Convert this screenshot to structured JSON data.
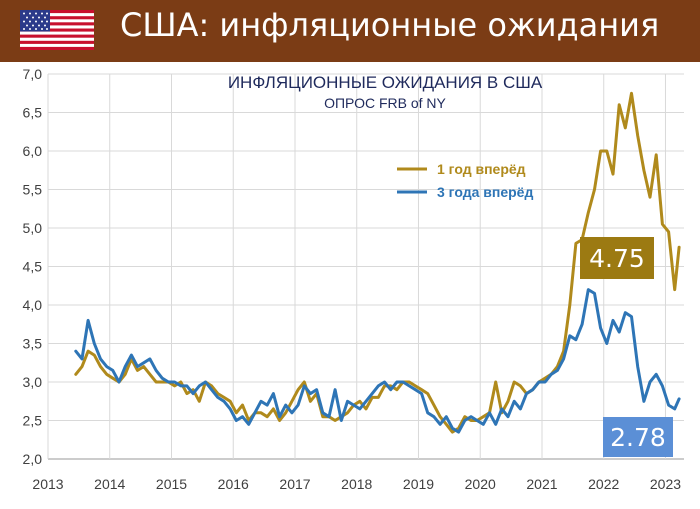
{
  "header": {
    "title": "США: инфляционные ожидания",
    "flag_icon": "us-flag-icon"
  },
  "colors": {
    "frame": "#7b3c15",
    "one_year": "#b08a1c",
    "three_year": "#2e75b6",
    "badge_one_year": "#9c7a12",
    "badge_three_year": "#5b8fd6"
  },
  "chart_data": {
    "type": "line",
    "title": "ИНФЛЯЦИОННЫЕ ОЖИДАНИЯ В США",
    "subtitle": "ОПРОС FRB of NY",
    "xlabel": "",
    "ylabel": "",
    "ylim": [
      2.0,
      7.0
    ],
    "xlim": [
      2013.0,
      2023.3
    ],
    "grid": true,
    "legend_position": "top-right",
    "y_ticks": [
      "2,0",
      "2,5",
      "3,0",
      "3,5",
      "4,0",
      "4,5",
      "5,0",
      "5,5",
      "6,0",
      "6,5",
      "7,0"
    ],
    "x_ticks": [
      "2013",
      "2014",
      "2015",
      "2016",
      "2017",
      "2018",
      "2019",
      "2020",
      "2021",
      "2022",
      "2023"
    ],
    "series": [
      {
        "name": "1 год вперёд",
        "color": "#b08a1c",
        "x": [
          2013.45,
          2013.55,
          2013.65,
          2013.75,
          2013.85,
          2013.95,
          2014.05,
          2014.15,
          2014.25,
          2014.35,
          2014.45,
          2014.55,
          2014.65,
          2014.75,
          2014.85,
          2014.95,
          2015.05,
          2015.15,
          2015.25,
          2015.35,
          2015.45,
          2015.55,
          2015.65,
          2015.75,
          2015.85,
          2015.95,
          2016.05,
          2016.15,
          2016.25,
          2016.35,
          2016.45,
          2016.55,
          2016.65,
          2016.75,
          2016.85,
          2016.95,
          2017.05,
          2017.15,
          2017.25,
          2017.35,
          2017.45,
          2017.55,
          2017.65,
          2017.75,
          2017.85,
          2017.95,
          2018.05,
          2018.15,
          2018.25,
          2018.35,
          2018.45,
          2018.55,
          2018.65,
          2018.75,
          2018.85,
          2018.95,
          2019.05,
          2019.15,
          2019.25,
          2019.35,
          2019.45,
          2019.55,
          2019.65,
          2019.75,
          2019.85,
          2019.95,
          2020.05,
          2020.15,
          2020.25,
          2020.35,
          2020.45,
          2020.55,
          2020.65,
          2020.75,
          2020.85,
          2020.95,
          2021.05,
          2021.15,
          2021.25,
          2021.35,
          2021.45,
          2021.55,
          2021.65,
          2021.75,
          2021.85,
          2021.95,
          2022.05,
          2022.15,
          2022.25,
          2022.35,
          2022.45,
          2022.55,
          2022.65,
          2022.75,
          2022.85,
          2022.95,
          2023.05,
          2023.15,
          2023.22
        ],
        "values": [
          3.1,
          3.2,
          3.4,
          3.35,
          3.2,
          3.1,
          3.05,
          3.0,
          3.1,
          3.3,
          3.15,
          3.2,
          3.1,
          3.0,
          3.0,
          3.0,
          2.95,
          3.0,
          2.85,
          2.9,
          2.75,
          3.0,
          2.95,
          2.85,
          2.8,
          2.75,
          2.6,
          2.7,
          2.5,
          2.6,
          2.6,
          2.55,
          2.65,
          2.5,
          2.6,
          2.75,
          2.9,
          3.0,
          2.75,
          2.85,
          2.55,
          2.55,
          2.5,
          2.55,
          2.6,
          2.7,
          2.75,
          2.65,
          2.8,
          2.8,
          2.95,
          2.95,
          2.9,
          3.0,
          3.0,
          2.95,
          2.9,
          2.85,
          2.7,
          2.55,
          2.45,
          2.35,
          2.4,
          2.55,
          2.5,
          2.5,
          2.55,
          2.6,
          3.0,
          2.6,
          2.75,
          3.0,
          2.95,
          2.85,
          2.9,
          3.0,
          3.05,
          3.1,
          3.2,
          3.4,
          4.0,
          4.8,
          4.85,
          5.2,
          5.5,
          6.0,
          6.0,
          5.7,
          6.6,
          6.3,
          6.75,
          6.2,
          5.75,
          5.4,
          5.95,
          5.05,
          4.95,
          4.2,
          4.75
        ]
      },
      {
        "name": "3 года вперёд",
        "color": "#2e75b6",
        "x": [
          2013.45,
          2013.55,
          2013.65,
          2013.75,
          2013.85,
          2013.95,
          2014.05,
          2014.15,
          2014.25,
          2014.35,
          2014.45,
          2014.55,
          2014.65,
          2014.75,
          2014.85,
          2014.95,
          2015.05,
          2015.15,
          2015.25,
          2015.35,
          2015.45,
          2015.55,
          2015.65,
          2015.75,
          2015.85,
          2015.95,
          2016.05,
          2016.15,
          2016.25,
          2016.35,
          2016.45,
          2016.55,
          2016.65,
          2016.75,
          2016.85,
          2016.95,
          2017.05,
          2017.15,
          2017.25,
          2017.35,
          2017.45,
          2017.55,
          2017.65,
          2017.75,
          2017.85,
          2017.95,
          2018.05,
          2018.15,
          2018.25,
          2018.35,
          2018.45,
          2018.55,
          2018.65,
          2018.75,
          2018.85,
          2018.95,
          2019.05,
          2019.15,
          2019.25,
          2019.35,
          2019.45,
          2019.55,
          2019.65,
          2019.75,
          2019.85,
          2019.95,
          2020.05,
          2020.15,
          2020.25,
          2020.35,
          2020.45,
          2020.55,
          2020.65,
          2020.75,
          2020.85,
          2020.95,
          2021.05,
          2021.15,
          2021.25,
          2021.35,
          2021.45,
          2021.55,
          2021.65,
          2021.75,
          2021.85,
          2021.95,
          2022.05,
          2022.15,
          2022.25,
          2022.35,
          2022.45,
          2022.55,
          2022.65,
          2022.75,
          2022.85,
          2022.95,
          2023.05,
          2023.15,
          2023.22
        ],
        "values": [
          3.4,
          3.3,
          3.8,
          3.5,
          3.3,
          3.2,
          3.15,
          3.0,
          3.2,
          3.35,
          3.2,
          3.25,
          3.3,
          3.15,
          3.05,
          3.0,
          3.0,
          2.95,
          2.95,
          2.85,
          2.95,
          3.0,
          2.9,
          2.8,
          2.75,
          2.65,
          2.5,
          2.55,
          2.45,
          2.6,
          2.75,
          2.7,
          2.85,
          2.55,
          2.7,
          2.6,
          2.7,
          2.95,
          2.85,
          2.9,
          2.6,
          2.55,
          2.9,
          2.5,
          2.75,
          2.7,
          2.65,
          2.75,
          2.85,
          2.95,
          3.0,
          2.9,
          3.0,
          3.0,
          2.95,
          2.9,
          2.85,
          2.6,
          2.55,
          2.45,
          2.55,
          2.4,
          2.35,
          2.5,
          2.55,
          2.5,
          2.45,
          2.6,
          2.45,
          2.65,
          2.55,
          2.75,
          2.65,
          2.85,
          2.9,
          3.0,
          3.0,
          3.1,
          3.15,
          3.3,
          3.6,
          3.55,
          3.75,
          4.2,
          4.15,
          3.7,
          3.5,
          3.8,
          3.65,
          3.9,
          3.85,
          3.2,
          2.75,
          3.0,
          3.1,
          2.95,
          2.7,
          2.65,
          2.78
        ]
      }
    ],
    "annotations": [
      {
        "series": "1 год вперёд",
        "label": "4.75"
      },
      {
        "series": "3 года вперёд",
        "label": "2.78"
      }
    ]
  }
}
